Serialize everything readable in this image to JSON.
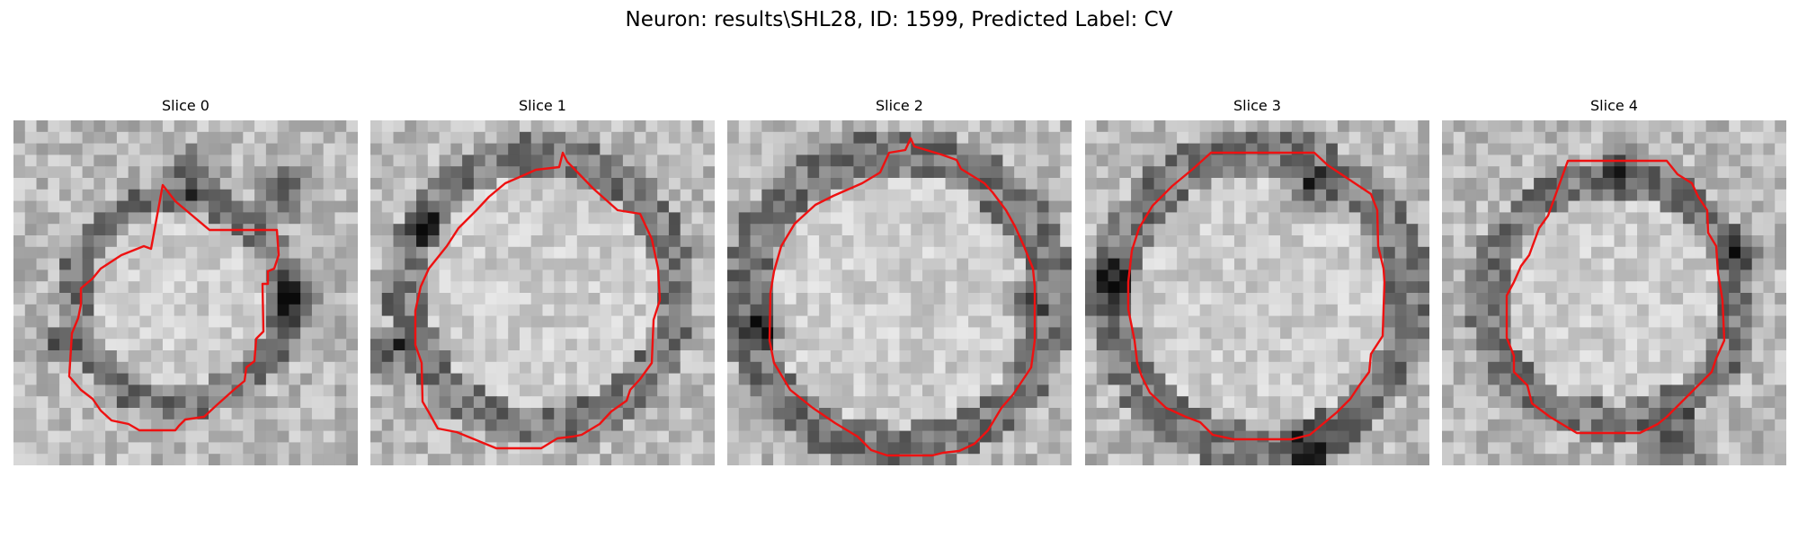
{
  "figure": {
    "title": "Neuron: results\\SHL28, ID: 1599, Predicted Label: CV"
  },
  "panels": [
    {
      "title": "Slice 0"
    },
    {
      "title": "Slice 1"
    },
    {
      "title": "Slice 2"
    },
    {
      "title": "Slice 3"
    },
    {
      "title": "Slice 4"
    }
  ],
  "style": {
    "contour_color": "#ee1111"
  }
}
